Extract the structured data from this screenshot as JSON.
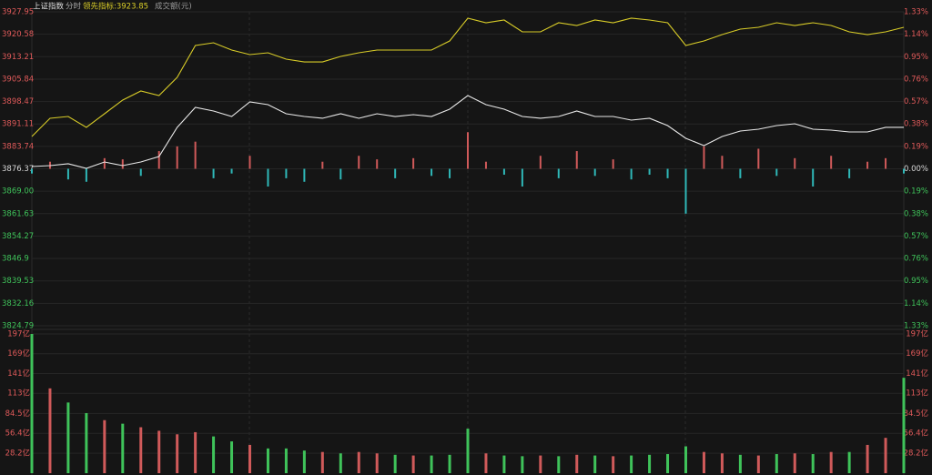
{
  "header": {
    "title": "上证指数",
    "period": "分时",
    "indicator": "领先指标:3923.85",
    "volume_label": "成交额(元)"
  },
  "chart_data": [
    {
      "type": "line",
      "x": [
        0,
        5,
        10,
        15,
        20,
        25,
        30,
        35,
        40,
        45,
        50,
        55,
        60,
        65,
        70,
        75,
        80,
        85,
        90,
        95,
        100,
        105,
        110,
        115,
        120,
        125,
        130,
        135,
        140,
        145,
        150,
        155,
        160,
        165,
        170,
        175,
        180,
        185,
        190,
        195,
        200,
        205,
        210,
        215,
        220,
        225,
        230,
        235,
        240
      ],
      "xlim": [
        0,
        240
      ],
      "ylim": [
        3824.79,
        3927.95
      ],
      "yticks": [
        3927.95,
        3920.58,
        3913.21,
        3905.84,
        3898.47,
        3891.11,
        3883.74,
        3876.37,
        {
          "value": 3869,
          "label": "3869.00"
        },
        3861.63,
        3854.27,
        3846.9,
        3839.53,
        3832.16,
        3824.79
      ],
      "y2lim": [
        -1.33,
        1.33
      ],
      "y2ticks": [
        {
          "value": 1.33,
          "label": "1.33%"
        },
        {
          "value": 1.14,
          "label": "1.14%"
        },
        {
          "value": 0.95,
          "label": "0.95%"
        },
        {
          "value": 0.76,
          "label": "0.76%"
        },
        {
          "value": 0.57,
          "label": "0.57%"
        },
        {
          "value": 0.38,
          "label": "0.38%"
        },
        {
          "value": 0.19,
          "label": "0.19%"
        },
        {
          "value": 0,
          "label": "0.00%"
        },
        {
          "value": -0.19,
          "label": "0.19%"
        },
        {
          "value": -0.38,
          "label": "0.38%"
        },
        {
          "value": -0.57,
          "label": "0.57%"
        },
        {
          "value": -0.76,
          "label": "0.76%"
        },
        {
          "value": -0.95,
          "label": "0.95%"
        },
        {
          "value": -1.14,
          "label": "1.14%"
        },
        {
          "value": -1.33,
          "label": "1.33%"
        }
      ],
      "series": [
        {
          "color": "#e8e8e8",
          "values": [
            3877.12,
            3877.42,
            3878.02,
            3876.52,
            3878.61,
            3877.42,
            3878.61,
            3880.41,
            3889.98,
            3896.55,
            3895.36,
            3893.56,
            3898.35,
            3897.45,
            3894.46,
            3893.56,
            3892.97,
            3894.46,
            3892.97,
            3894.46,
            3893.56,
            3894.16,
            3893.56,
            3895.96,
            3900.44,
            3897.45,
            3895.96,
            3893.56,
            3892.97,
            3893.56,
            3895.36,
            3893.56,
            3893.56,
            3892.37,
            3892.97,
            3890.57,
            3886.39,
            3884.0,
            3886.99,
            3888.78,
            3889.38,
            3890.57,
            3891.17,
            3889.38,
            3889.08,
            3888.48,
            3888.48,
            3889.98,
            3889.98
          ]
        },
        {
          "color": "#d8cc28",
          "values": [
            3886.99,
            3892.97,
            3893.56,
            3889.98,
            3894.46,
            3898.95,
            3901.94,
            3900.44,
            3906.42,
            3916.89,
            3917.78,
            3915.39,
            3913.9,
            3914.49,
            3912.4,
            3911.5,
            3911.5,
            3913.3,
            3914.49,
            3915.39,
            3915.39,
            3915.39,
            3915.39,
            3918.38,
            3925.86,
            3924.36,
            3925.26,
            3921.37,
            3921.37,
            3924.36,
            3923.46,
            3925.26,
            3924.36,
            3925.86,
            3925.26,
            3924.36,
            3916.89,
            3918.38,
            3920.47,
            3922.27,
            3922.87,
            3924.36,
            3923.46,
            3924.36,
            3923.46,
            3921.37,
            3920.47,
            3921.37,
            3922.87
          ]
        },
        {
          "type": "bar",
          "axis": "y2",
          "colors": [
            "#d05a5a",
            "#2fb8b8"
          ],
          "values": [
            -0.04,
            0.06,
            -0.09,
            -0.11,
            0.09,
            0.08,
            -0.06,
            0.15,
            0.19,
            0.23,
            -0.08,
            -0.04,
            0.11,
            -0.15,
            -0.08,
            -0.11,
            0.06,
            -0.09,
            0.11,
            0.08,
            -0.08,
            0.09,
            -0.06,
            -0.08,
            0.31,
            0.06,
            -0.05,
            -0.15,
            0.11,
            -0.08,
            0.15,
            -0.06,
            0.08,
            -0.09,
            -0.05,
            -0.08,
            -0.38,
            0.19,
            0.11,
            -0.08,
            0.17,
            -0.06,
            0.09,
            -0.15,
            0.11,
            -0.08,
            0.06,
            0.09,
            -0.04
          ]
        }
      ],
      "tick_colors": [
        "#e05a5a",
        "#d8d8d8",
        "#3fc35a"
      ]
    },
    {
      "type": "bar",
      "x": [
        0,
        5,
        10,
        15,
        20,
        25,
        30,
        35,
        40,
        45,
        50,
        55,
        60,
        65,
        70,
        75,
        80,
        85,
        90,
        95,
        100,
        105,
        110,
        115,
        120,
        125,
        130,
        135,
        140,
        145,
        150,
        155,
        160,
        165,
        170,
        175,
        180,
        185,
        190,
        195,
        200,
        205,
        210,
        215,
        220,
        225,
        230,
        235,
        240
      ],
      "xlim": [
        0,
        240
      ],
      "ylim": [
        0,
        197
      ],
      "yticks": [
        {
          "value": 197,
          "label": "197亿"
        },
        {
          "value": 169,
          "label": "169亿"
        },
        {
          "value": 141,
          "label": "141亿"
        },
        {
          "value": 113,
          "label": "113亿"
        },
        {
          "value": 84.5,
          "label": "84.5亿"
        },
        {
          "value": 56.4,
          "label": "56.4亿"
        },
        {
          "value": 28.2,
          "label": "28.2亿"
        }
      ],
      "tick_color": "#e05a5a",
      "values": [
        197,
        120,
        100,
        85,
        75,
        70,
        65,
        60,
        55,
        58,
        52,
        45,
        40,
        35,
        35,
        32,
        30,
        28,
        30,
        28,
        26,
        25,
        25,
        26,
        63,
        28,
        25,
        24,
        25,
        24,
        26,
        25,
        24,
        25,
        26,
        27,
        38,
        30,
        28,
        26,
        25,
        27,
        28,
        27,
        30,
        30,
        40,
        50,
        135
      ],
      "colors": [
        "#3fc35a",
        "#d05a5a",
        "#3fc35a",
        "#3fc35a",
        "#d05a5a",
        "#3fc35a",
        "#d05a5a",
        "#d05a5a",
        "#d05a5a",
        "#d05a5a",
        "#3fc35a",
        "#3fc35a",
        "#d05a5a",
        "#3fc35a",
        "#3fc35a",
        "#3fc35a",
        "#d05a5a",
        "#3fc35a",
        "#d05a5a",
        "#d05a5a",
        "#3fc35a",
        "#d05a5a",
        "#3fc35a",
        "#3fc35a",
        "#3fc35a",
        "#d05a5a",
        "#3fc35a",
        "#3fc35a",
        "#d05a5a",
        "#3fc35a",
        "#d05a5a",
        "#3fc35a",
        "#d05a5a",
        "#3fc35a",
        "#3fc35a",
        "#3fc35a",
        "#3fc35a",
        "#d05a5a",
        "#d05a5a",
        "#3fc35a",
        "#d05a5a",
        "#3fc35a",
        "#d05a5a",
        "#3fc35a",
        "#d05a5a",
        "#3fc35a",
        "#d05a5a",
        "#d05a5a",
        "#3fc35a"
      ]
    }
  ]
}
